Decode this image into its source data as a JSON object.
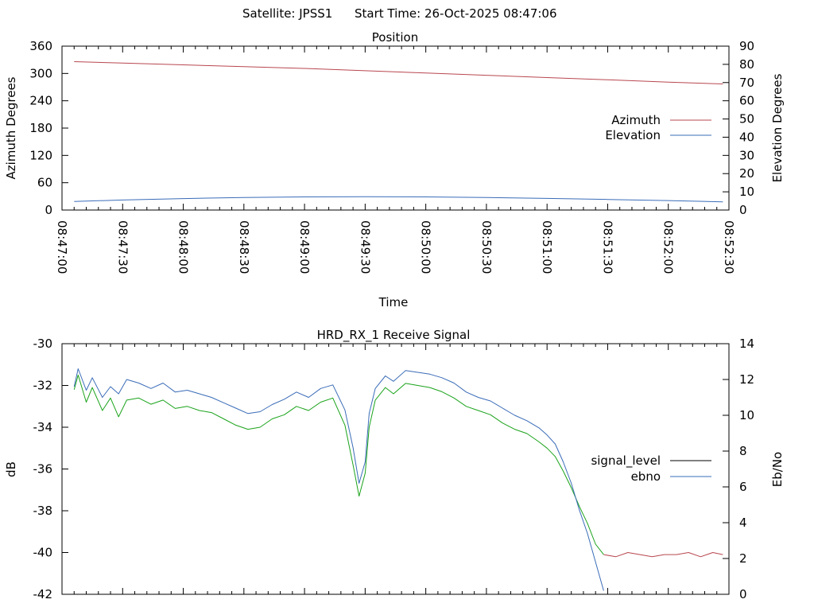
{
  "header": {
    "satellite": "Satellite: JPSS1",
    "start_time": "Start Time: 26-Oct-2025 08:47:06"
  },
  "colors": {
    "azimuth": "#b8474f",
    "elevation": "#3a6cb8",
    "signal_level": "#000000",
    "ebno": "#3a6cb8",
    "ebno_curve": "#1aa31a",
    "signal_curve": "#b8474f"
  },
  "chart_data": [
    {
      "type": "line",
      "title": "Position",
      "xlabel": "Time",
      "ylabel": "Azimuth Degrees",
      "y2label": "Elevation Degrees",
      "xlim": [
        "08:47:00",
        "08:52:30"
      ],
      "x_ticks": [
        "08:47:00",
        "08:47:30",
        "08:48:00",
        "08:48:30",
        "08:49:00",
        "08:49:30",
        "08:50:00",
        "08:50:30",
        "08:51:00",
        "08:51:30",
        "08:52:00",
        "08:52:30"
      ],
      "ylim": [
        0,
        360
      ],
      "y_ticks": [
        "0",
        "60",
        "120",
        "180",
        "240",
        "300",
        "360"
      ],
      "y2lim": [
        0,
        90
      ],
      "y2_ticks": [
        "0",
        "10",
        "20",
        "30",
        "40",
        "50",
        "60",
        "70",
        "80",
        "90"
      ],
      "legend_position": "right",
      "series": [
        {
          "name": "Azimuth",
          "axis": "y",
          "x": [
            "08:47:06",
            "08:47:30",
            "08:48:00",
            "08:48:30",
            "08:49:00",
            "08:49:30",
            "08:50:00",
            "08:50:30",
            "08:51:00",
            "08:51:30",
            "08:52:00",
            "08:52:27"
          ],
          "y": [
            326,
            323,
            319,
            315,
            311,
            306,
            301,
            296,
            291,
            286,
            281,
            277
          ]
        },
        {
          "name": "Elevation",
          "axis": "y2",
          "x": [
            "08:47:06",
            "08:47:30",
            "08:48:00",
            "08:48:30",
            "08:49:00",
            "08:49:30",
            "08:50:00",
            "08:50:30",
            "08:51:00",
            "08:51:30",
            "08:52:00",
            "08:52:27"
          ],
          "y": [
            4.7,
            5.5,
            6.3,
            6.9,
            7.2,
            7.3,
            7.2,
            6.9,
            6.4,
            5.8,
            5.2,
            4.5
          ]
        }
      ]
    },
    {
      "type": "line",
      "title": "HRD_RX_1 Receive Signal",
      "xlabel": "",
      "ylabel": "dB",
      "y2label": "Eb/No",
      "xlim": [
        "08:47:00",
        "08:52:30"
      ],
      "ylim": [
        -42,
        -30
      ],
      "y_ticks": [
        "-30",
        "-32",
        "-34",
        "-36",
        "-38",
        "-40",
        "-42"
      ],
      "y2lim": [
        0,
        14
      ],
      "y2_ticks": [
        "0",
        "2",
        "4",
        "6",
        "8",
        "10",
        "12",
        "14"
      ],
      "legend_position": "right",
      "series": [
        {
          "name": "signal_level",
          "axis": "y",
          "x": [
            "08:47:06",
            "08:47:08",
            "08:47:12",
            "08:47:15",
            "08:47:20",
            "08:47:24",
            "08:47:28",
            "08:47:32",
            "08:47:38",
            "08:47:44",
            "08:47:50",
            "08:47:56",
            "08:48:02",
            "08:48:08",
            "08:48:14",
            "08:48:20",
            "08:48:26",
            "08:48:32",
            "08:48:38",
            "08:48:44",
            "08:48:50",
            "08:48:56",
            "08:49:02",
            "08:49:08",
            "08:49:14",
            "08:49:20",
            "08:49:24",
            "08:49:27",
            "08:49:30",
            "08:49:32",
            "08:49:35",
            "08:49:40",
            "08:49:44",
            "08:49:50",
            "08:49:56",
            "08:50:02",
            "08:50:08",
            "08:50:14",
            "08:50:20",
            "08:50:26",
            "08:50:32",
            "08:50:38",
            "08:50:44",
            "08:50:50",
            "08:50:56",
            "08:51:00",
            "08:51:04",
            "08:51:08",
            "08:51:12",
            "08:51:16",
            "08:51:20",
            "08:51:24",
            "08:51:28",
            "08:51:34",
            "08:51:40",
            "08:51:46",
            "08:51:52",
            "08:51:58",
            "08:52:04",
            "08:52:10",
            "08:52:16",
            "08:52:22",
            "08:52:27"
          ],
          "y": [
            -32.2,
            -31.5,
            -32.8,
            -32.1,
            -33.2,
            -32.6,
            -33.5,
            -32.7,
            -32.6,
            -32.9,
            -32.7,
            -33.1,
            -33.0,
            -33.2,
            -33.3,
            -33.6,
            -33.9,
            -34.1,
            -34.0,
            -33.6,
            -33.4,
            -33.0,
            -33.2,
            -32.8,
            -32.6,
            -33.9,
            -35.8,
            -37.3,
            -36.2,
            -34.0,
            -32.7,
            -32.1,
            -32.4,
            -31.9,
            -32.0,
            -32.1,
            -32.3,
            -32.6,
            -33.0,
            -33.2,
            -33.4,
            -33.8,
            -34.1,
            -34.3,
            -34.7,
            -35.0,
            -35.4,
            -36.1,
            -36.9,
            -37.8,
            -38.6,
            -39.6,
            -40.1,
            -40.2,
            -40.0,
            -40.1,
            -40.2,
            -40.1,
            -40.1,
            -40.0,
            -40.2,
            -40.0,
            -40.1
          ]
        },
        {
          "name": "ebno",
          "axis": "y2",
          "x": [
            "08:47:06",
            "08:47:08",
            "08:47:12",
            "08:47:15",
            "08:47:20",
            "08:47:24",
            "08:47:28",
            "08:47:32",
            "08:47:38",
            "08:47:44",
            "08:47:50",
            "08:47:56",
            "08:48:02",
            "08:48:08",
            "08:48:14",
            "08:48:20",
            "08:48:26",
            "08:48:32",
            "08:48:38",
            "08:48:44",
            "08:48:50",
            "08:48:56",
            "08:49:02",
            "08:49:08",
            "08:49:14",
            "08:49:20",
            "08:49:24",
            "08:49:27",
            "08:49:30",
            "08:49:32",
            "08:49:35",
            "08:49:40",
            "08:49:44",
            "08:49:50",
            "08:49:56",
            "08:50:02",
            "08:50:08",
            "08:50:14",
            "08:50:20",
            "08:50:26",
            "08:50:32",
            "08:50:38",
            "08:50:44",
            "08:50:50",
            "08:50:56",
            "08:51:00",
            "08:51:04",
            "08:51:08",
            "08:51:12",
            "08:51:16",
            "08:51:20",
            "08:51:24",
            "08:51:28"
          ],
          "y": [
            11.6,
            12.6,
            11.4,
            12.1,
            11.0,
            11.6,
            11.2,
            12.0,
            11.8,
            11.5,
            11.8,
            11.3,
            11.4,
            11.2,
            11.0,
            10.7,
            10.4,
            10.1,
            10.2,
            10.6,
            10.9,
            11.3,
            11.0,
            11.5,
            11.7,
            10.3,
            8.2,
            6.2,
            7.4,
            10.1,
            11.5,
            12.2,
            11.9,
            12.5,
            12.4,
            12.3,
            12.1,
            11.8,
            11.3,
            11.0,
            10.8,
            10.4,
            10.0,
            9.7,
            9.3,
            8.9,
            8.4,
            7.4,
            6.2,
            4.7,
            3.4,
            1.8,
            0.2
          ]
        }
      ]
    }
  ]
}
